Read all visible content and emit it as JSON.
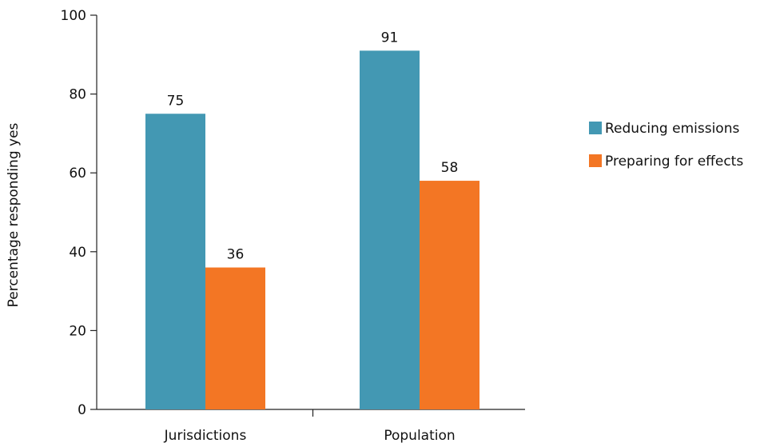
{
  "chart_data": {
    "type": "bar",
    "categories": [
      "Jurisdictions",
      "Population"
    ],
    "series": [
      {
        "name": "Reducing emissions",
        "values": [
          75,
          91
        ],
        "color": "#4398b3"
      },
      {
        "name": "Preparing for effects",
        "values": [
          36,
          58
        ],
        "color": "#f37624"
      }
    ],
    "data_labels": [
      [
        "75",
        "91"
      ],
      [
        "36",
        "58"
      ]
    ],
    "ylabel": "Percentage responding yes",
    "xlabel": "",
    "ylim": [
      0,
      100
    ],
    "yticks": [
      0,
      20,
      40,
      60,
      80,
      100
    ],
    "grid": false,
    "legend_position": "right"
  }
}
